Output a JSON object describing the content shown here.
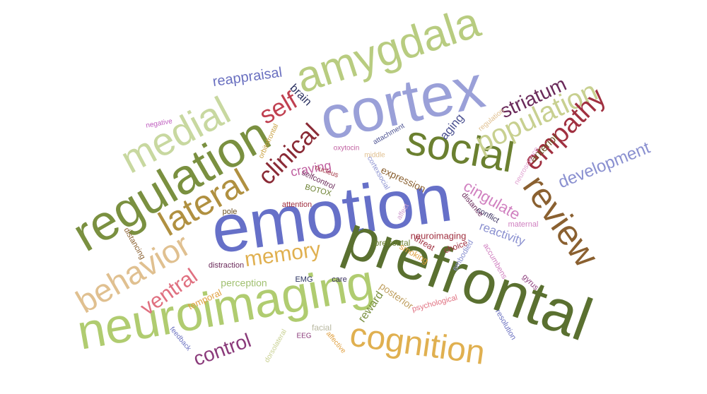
{
  "words": [
    "emotion",
    "prefrontal",
    "cortex",
    "neuroimaging",
    "regulation",
    "amygdala",
    "social",
    "medial",
    "cognition",
    "review",
    "lateral",
    "behavior",
    "population",
    "empathy",
    "clinical",
    "self",
    "striatum",
    "memory",
    "ventral",
    "control",
    "development",
    "reappraisal",
    "cingulate",
    "brain",
    "reactivity",
    "craving",
    "expression",
    "aging",
    "anterior",
    "perception",
    "posterior",
    "reward",
    "temporal",
    "neuroimaging",
    "prefrontal",
    "threat",
    "choice",
    "smoking",
    "embodied",
    "accumbens",
    "maternal",
    "conflict",
    "distance",
    "gyrus",
    "resolution",
    "psychological",
    "care",
    "EMG",
    "distraction",
    "distancing",
    "pole",
    "attention",
    "BOTOX",
    "selfcontrol",
    "nucleus",
    "orbitofrontal",
    "oxytocin",
    "attachment",
    "middle",
    "cortexsocial",
    "affect",
    "regulation",
    "neuroscience",
    "negative",
    "feedback",
    "dorsolateral",
    "EEG",
    "facial",
    "affective"
  ]
}
